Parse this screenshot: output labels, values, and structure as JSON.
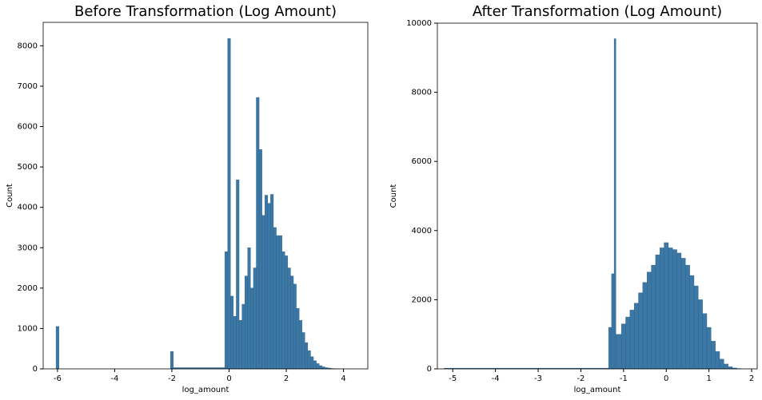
{
  "chart_data": [
    {
      "type": "histogram",
      "title": "Before Transformation (Log Amount)",
      "xlabel": "log_amount",
      "ylabel": "Count",
      "color": "#3b78a6",
      "bins": [
        -6.05,
        -5.95,
        -2.05,
        -1.95,
        -0.15,
        -0.05,
        0.05,
        0.15,
        0.25,
        0.35,
        0.45,
        0.55,
        0.65,
        0.75,
        0.85,
        0.95,
        1.05,
        1.15,
        1.25,
        1.35,
        1.45,
        1.55,
        1.65,
        1.75,
        1.85,
        1.95,
        2.05,
        2.15,
        2.25,
        2.35,
        2.45,
        2.55,
        2.65,
        2.75,
        2.85,
        2.95,
        3.05,
        3.15,
        3.25,
        3.35,
        3.45,
        3.55,
        3.65,
        3.75,
        3.85
      ],
      "counts": [
        1050,
        0,
        430,
        30,
        2900,
        8180,
        1800,
        1300,
        4680,
        1200,
        1600,
        2300,
        3000,
        2000,
        2500,
        6720,
        5430,
        3800,
        4300,
        4100,
        4320,
        3500,
        3300,
        3300,
        2900,
        2800,
        2500,
        2300,
        2100,
        1500,
        1200,
        900,
        650,
        450,
        300,
        200,
        130,
        80,
        50,
        30,
        20,
        10,
        5,
        3
      ],
      "xlim": [
        -6.5,
        4.85
      ],
      "ylim": [
        0,
        8580
      ],
      "xticks": [
        -6,
        -4,
        -2,
        0,
        2,
        4
      ],
      "yticks": [
        0,
        1000,
        2000,
        3000,
        4000,
        5000,
        6000,
        7000,
        8000
      ]
    },
    {
      "type": "histogram",
      "title": "After Transformation (Log Amount)",
      "xlabel": "log_amount",
      "ylabel": "Count",
      "color": "#3b78a6",
      "bins": [
        -5.2,
        -1.35,
        -1.28,
        -1.22,
        -1.18,
        -1.05,
        -0.95,
        -0.85,
        -0.75,
        -0.65,
        -0.55,
        -0.45,
        -0.35,
        -0.25,
        -0.15,
        -0.05,
        0.05,
        0.15,
        0.25,
        0.35,
        0.45,
        0.55,
        0.65,
        0.75,
        0.85,
        0.95,
        1.05,
        1.15,
        1.25,
        1.35,
        1.45,
        1.55,
        1.65,
        1.75
      ],
      "counts": [
        20,
        1200,
        2750,
        9550,
        1000,
        1300,
        1500,
        1700,
        1900,
        2200,
        2500,
        2800,
        3000,
        3300,
        3500,
        3650,
        3500,
        3450,
        3350,
        3200,
        3000,
        2700,
        2400,
        2000,
        1600,
        1200,
        800,
        500,
        280,
        140,
        60,
        25,
        10
      ],
      "xlim": [
        -5.36,
        2.13
      ],
      "ylim": [
        0,
        10000
      ],
      "xticks": [
        -5,
        -4,
        -3,
        -2,
        -1,
        0,
        1,
        2
      ],
      "yticks": [
        0,
        2000,
        4000,
        6000,
        8000,
        10000
      ]
    }
  ]
}
